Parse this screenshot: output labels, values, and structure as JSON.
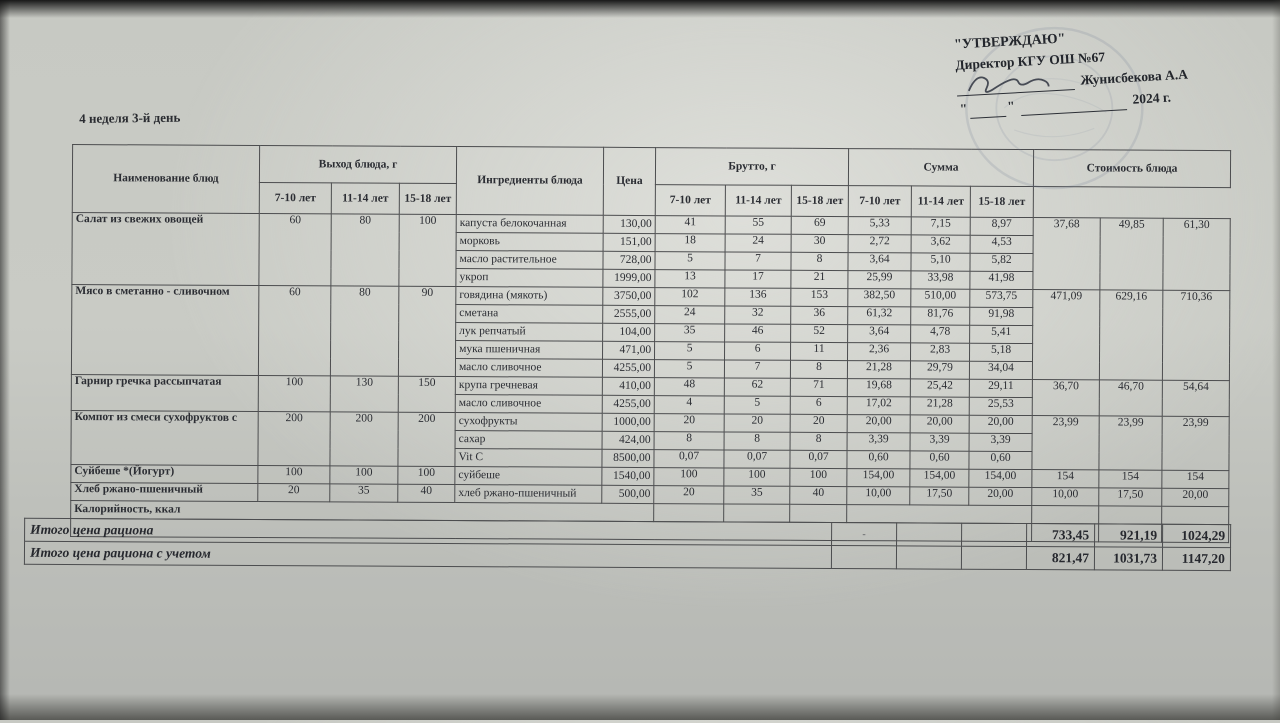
{
  "approval": {
    "line1": "\"УТВЕРЖДАЮ\"",
    "line2": "Директор КГУ ОШ №67",
    "signed_name": "Жунисбекова А.А",
    "open_quote": "\"",
    "close_quote": "\"",
    "year": "2024 г."
  },
  "subtitle": "4 неделя 3-й день",
  "table": {
    "headers": {
      "name": "Наименование блюд",
      "vyhod": "Выход блюда, г",
      "ingredients": "Ингредиенты блюда",
      "price": "Цена",
      "brutto": "Брутто, г",
      "summa": "Сумма",
      "cost": "Стоимость блюда",
      "age_cols": [
        "7-10 лет",
        "11-14 лет",
        "15-18 лет"
      ]
    },
    "dishes": [
      {
        "name": "Салат из свежих овощей",
        "vyhod": [
          "60",
          "80",
          "100"
        ],
        "cost": [
          "37,68",
          "49,85",
          "61,30"
        ],
        "ingredients": [
          {
            "name": "капуста белокочанная",
            "price": "130,00",
            "brutto": [
              "41",
              "55",
              "69"
            ],
            "summa": [
              "5,33",
              "7,15",
              "8,97"
            ]
          },
          {
            "name": "морковь",
            "price": "151,00",
            "brutto": [
              "18",
              "24",
              "30"
            ],
            "summa": [
              "2,72",
              "3,62",
              "4,53"
            ]
          },
          {
            "name": "масло растительное",
            "price": "728,00",
            "brutto": [
              "5",
              "7",
              "8"
            ],
            "summa": [
              "3,64",
              "5,10",
              "5,82"
            ]
          },
          {
            "name": "укроп",
            "price": "1999,00",
            "brutto": [
              "13",
              "17",
              "21"
            ],
            "summa": [
              "25,99",
              "33,98",
              "41,98"
            ]
          }
        ]
      },
      {
        "name": "Мясо в сметанно - сливочном",
        "vyhod": [
          "60",
          "80",
          "90"
        ],
        "cost": [
          "471,09",
          "629,16",
          "710,36"
        ],
        "ingredients": [
          {
            "name": "говядина (мякоть)",
            "price": "3750,00",
            "brutto": [
              "102",
              "136",
              "153"
            ],
            "summa": [
              "382,50",
              "510,00",
              "573,75"
            ]
          },
          {
            "name": "сметана",
            "price": "2555,00",
            "brutto": [
              "24",
              "32",
              "36"
            ],
            "summa": [
              "61,32",
              "81,76",
              "91,98"
            ]
          },
          {
            "name": "лук репчатый",
            "price": "104,00",
            "brutto": [
              "35",
              "46",
              "52"
            ],
            "summa": [
              "3,64",
              "4,78",
              "5,41"
            ]
          },
          {
            "name": "мука пшеничная",
            "price": "471,00",
            "brutto": [
              "5",
              "6",
              "11"
            ],
            "summa": [
              "2,36",
              "2,83",
              "5,18"
            ]
          },
          {
            "name": "масло сливочное",
            "price": "4255,00",
            "brutto": [
              "5",
              "7",
              "8"
            ],
            "summa": [
              "21,28",
              "29,79",
              "34,04"
            ]
          }
        ]
      },
      {
        "name": "Гарнир  гречка рассыпчатая",
        "vyhod": [
          "100",
          "130",
          "150"
        ],
        "cost": [
          "36,70",
          "46,70",
          "54,64"
        ],
        "ingredients": [
          {
            "name": "крупа гречневая",
            "price": "410,00",
            "brutto": [
              "48",
              "62",
              "71"
            ],
            "summa": [
              "19,68",
              "25,42",
              "29,11"
            ]
          },
          {
            "name": "масло сливочное",
            "price": "4255,00",
            "brutto": [
              "4",
              "5",
              "6"
            ],
            "summa": [
              "17,02",
              "21,28",
              "25,53"
            ]
          }
        ]
      },
      {
        "name": "Компот из смеси сухофруктов с",
        "vyhod": [
          "200",
          "200",
          "200"
        ],
        "cost": [
          "23,99",
          "23,99",
          "23,99"
        ],
        "ingredients": [
          {
            "name": "сухофрукты",
            "price": "1000,00",
            "brutto": [
              "20",
              "20",
              "20"
            ],
            "summa": [
              "20,00",
              "20,00",
              "20,00"
            ]
          },
          {
            "name": "сахар",
            "price": "424,00",
            "brutto": [
              "8",
              "8",
              "8"
            ],
            "summa": [
              "3,39",
              "3,39",
              "3,39"
            ]
          },
          {
            "name": "Vit C",
            "price": "8500,00",
            "brutto": [
              "0,07",
              "0,07",
              "0,07"
            ],
            "summa": [
              "0,60",
              "0,60",
              "0,60"
            ]
          }
        ]
      },
      {
        "name": "Суйбеше *(Йогурт)",
        "vyhod": [
          "100",
          "100",
          "100"
        ],
        "cost": [
          "154",
          "154",
          "154"
        ],
        "ingredients": [
          {
            "name": "суйбеше",
            "price": "1540,00",
            "brutto": [
              "100",
              "100",
              "100"
            ],
            "summa": [
              "154,00",
              "154,00",
              "154,00"
            ]
          }
        ]
      },
      {
        "name": "Хлеб ржано-пшеничный",
        "vyhod": [
          "20",
          "35",
          "40"
        ],
        "cost": [
          "10,00",
          "17,50",
          "20,00"
        ],
        "ingredients": [
          {
            "name": "хлеб ржано-пшеничный",
            "price": "500,00",
            "brutto": [
              "20",
              "35",
              "40"
            ],
            "summa": [
              "10,00",
              "17,50",
              "20,00"
            ]
          }
        ]
      }
    ],
    "calories_label": "Калорийность, ккал",
    "totals": [
      {
        "label": "Итого цена рациона",
        "mark": "-",
        "values": [
          "733,45",
          "921,19",
          "1024,29"
        ]
      },
      {
        "label": "Итого цена рациона с учетом",
        "mark": "",
        "values": [
          "821,47",
          "1031,73",
          "1147,20"
        ]
      }
    ]
  }
}
